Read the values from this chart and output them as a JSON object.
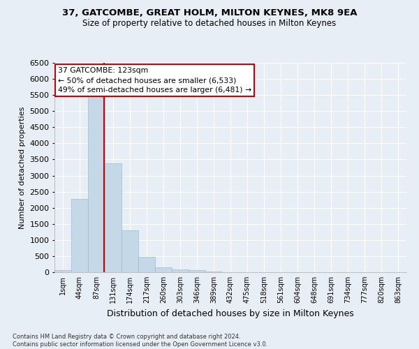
{
  "title1": "37, GATCOMBE, GREAT HOLM, MILTON KEYNES, MK8 9EA",
  "title2": "Size of property relative to detached houses in Milton Keynes",
  "xlabel": "Distribution of detached houses by size in Milton Keynes",
  "ylabel": "Number of detached properties",
  "footnote": "Contains HM Land Registry data © Crown copyright and database right 2024.\nContains public sector information licensed under the Open Government Licence v3.0.",
  "bar_labels": [
    "1sqm",
    "44sqm",
    "87sqm",
    "131sqm",
    "174sqm",
    "217sqm",
    "260sqm",
    "303sqm",
    "346sqm",
    "389sqm",
    "432sqm",
    "475sqm",
    "518sqm",
    "561sqm",
    "604sqm",
    "648sqm",
    "691sqm",
    "734sqm",
    "777sqm",
    "820sqm",
    "863sqm"
  ],
  "bar_values": [
    60,
    2280,
    5450,
    3380,
    1290,
    475,
    160,
    80,
    55,
    30,
    10,
    5,
    3,
    2,
    1,
    1,
    1,
    0,
    0,
    0,
    0
  ],
  "bar_color": "#c5d8e8",
  "bar_edge_color": "#a0bcd0",
  "ylim": [
    0,
    6500
  ],
  "yticks": [
    0,
    500,
    1000,
    1500,
    2000,
    2500,
    3000,
    3500,
    4000,
    4500,
    5000,
    5500,
    6000,
    6500
  ],
  "vline_x_idx": 2,
  "vline_color": "#cc0000",
  "annotation_title": "37 GATCOMBE: 123sqm",
  "annotation_line1": "← 50% of detached houses are smaller (6,533)",
  "annotation_line2": "49% of semi-detached houses are larger (6,481) →",
  "annotation_box_color": "#ffffff",
  "annotation_box_edge": "#cc0000",
  "background_color": "#e8eef5",
  "grid_color": "#ffffff"
}
